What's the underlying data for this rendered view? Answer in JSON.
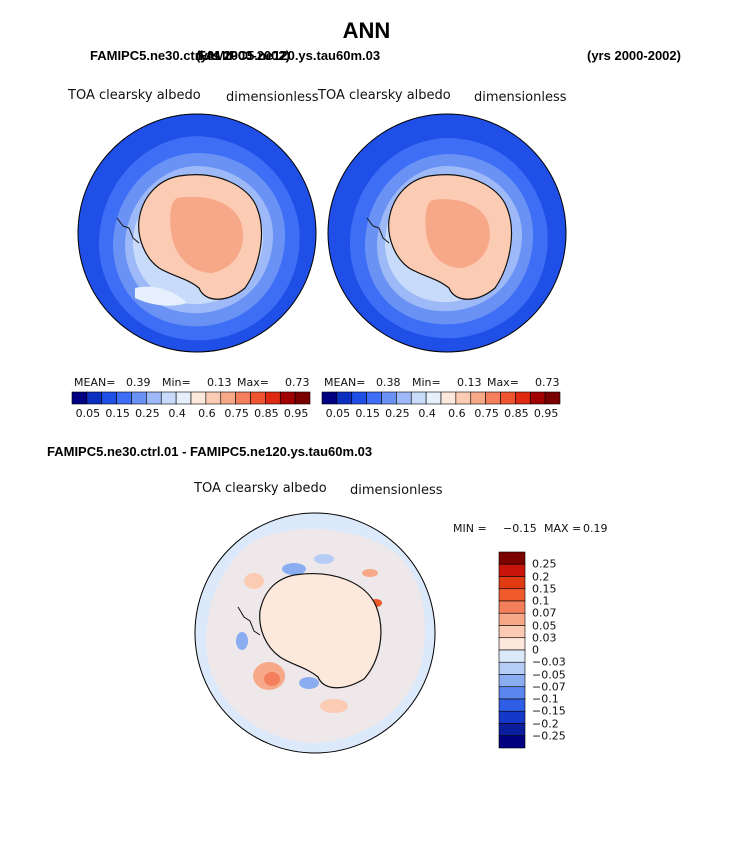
{
  "season": "ANN",
  "panels": [
    {
      "case": "FAMIPC5.ne30.ctrl.01",
      "years": "(yrs 2000-2002)",
      "variable": "TOA clearsky albedo",
      "units": "dimensionless",
      "stats": {
        "mean_label": "MEAN=",
        "mean": "0.39",
        "min_label": "Min=",
        "min": "0.13",
        "max_label": "Max=",
        "max": "0.73"
      }
    },
    {
      "case": "FAMIPC5.ne120.ys.tau60m.03",
      "years": "(yrs 2000-2002)",
      "variable": "TOA clearsky albedo",
      "units": "dimensionless",
      "stats": {
        "mean_label": "MEAN=",
        "mean": "0.38",
        "min_label": "Min=",
        "min": "0.13",
        "max_label": "Max=",
        "max": "0.73"
      }
    }
  ],
  "diff": {
    "title": "FAMIPC5.ne30.ctrl.01 - FAMIPC5.ne120.ys.tau60m.03",
    "variable": "TOA clearsky albedo",
    "units": "dimensionless",
    "min_label": "MIN =",
    "min": "−0.15",
    "max_label": "MAX =",
    "max": "0.19"
  },
  "colorbar_abs": {
    "labels": [
      "0.05",
      "0.15",
      "0.25",
      "0.4",
      "0.6",
      "0.75",
      "0.85",
      "0.95"
    ],
    "colors": [
      "#000080",
      "#0d2fbf",
      "#1f4fe6",
      "#3d6ef5",
      "#6a92f5",
      "#9db9f7",
      "#c9dbfa",
      "#e6f0fd",
      "#fde8dc",
      "#fbcbb4",
      "#f7a888",
      "#f37f5c",
      "#ee5530",
      "#dd2a10",
      "#a00000",
      "#7a0000"
    ]
  },
  "colorbar_diff": {
    "labels": [
      "0.25",
      "0.2",
      "0.15",
      "0.1",
      "0.07",
      "0.05",
      "0.03",
      "0",
      "−0.03",
      "−0.05",
      "−0.07",
      "−0.1",
      "−0.15",
      "−0.2",
      "−0.25"
    ],
    "colors": [
      "#7a0000",
      "#c8140a",
      "#e03a10",
      "#ee5a2a",
      "#f37f5c",
      "#f7a888",
      "#fbcbb4",
      "#fde8dc",
      "#dbe9fb",
      "#b5cdf6",
      "#8aadf2",
      "#5c86ee",
      "#2f5ee6",
      "#1638c8",
      "#0a1e9c",
      "#000080"
    ]
  }
}
